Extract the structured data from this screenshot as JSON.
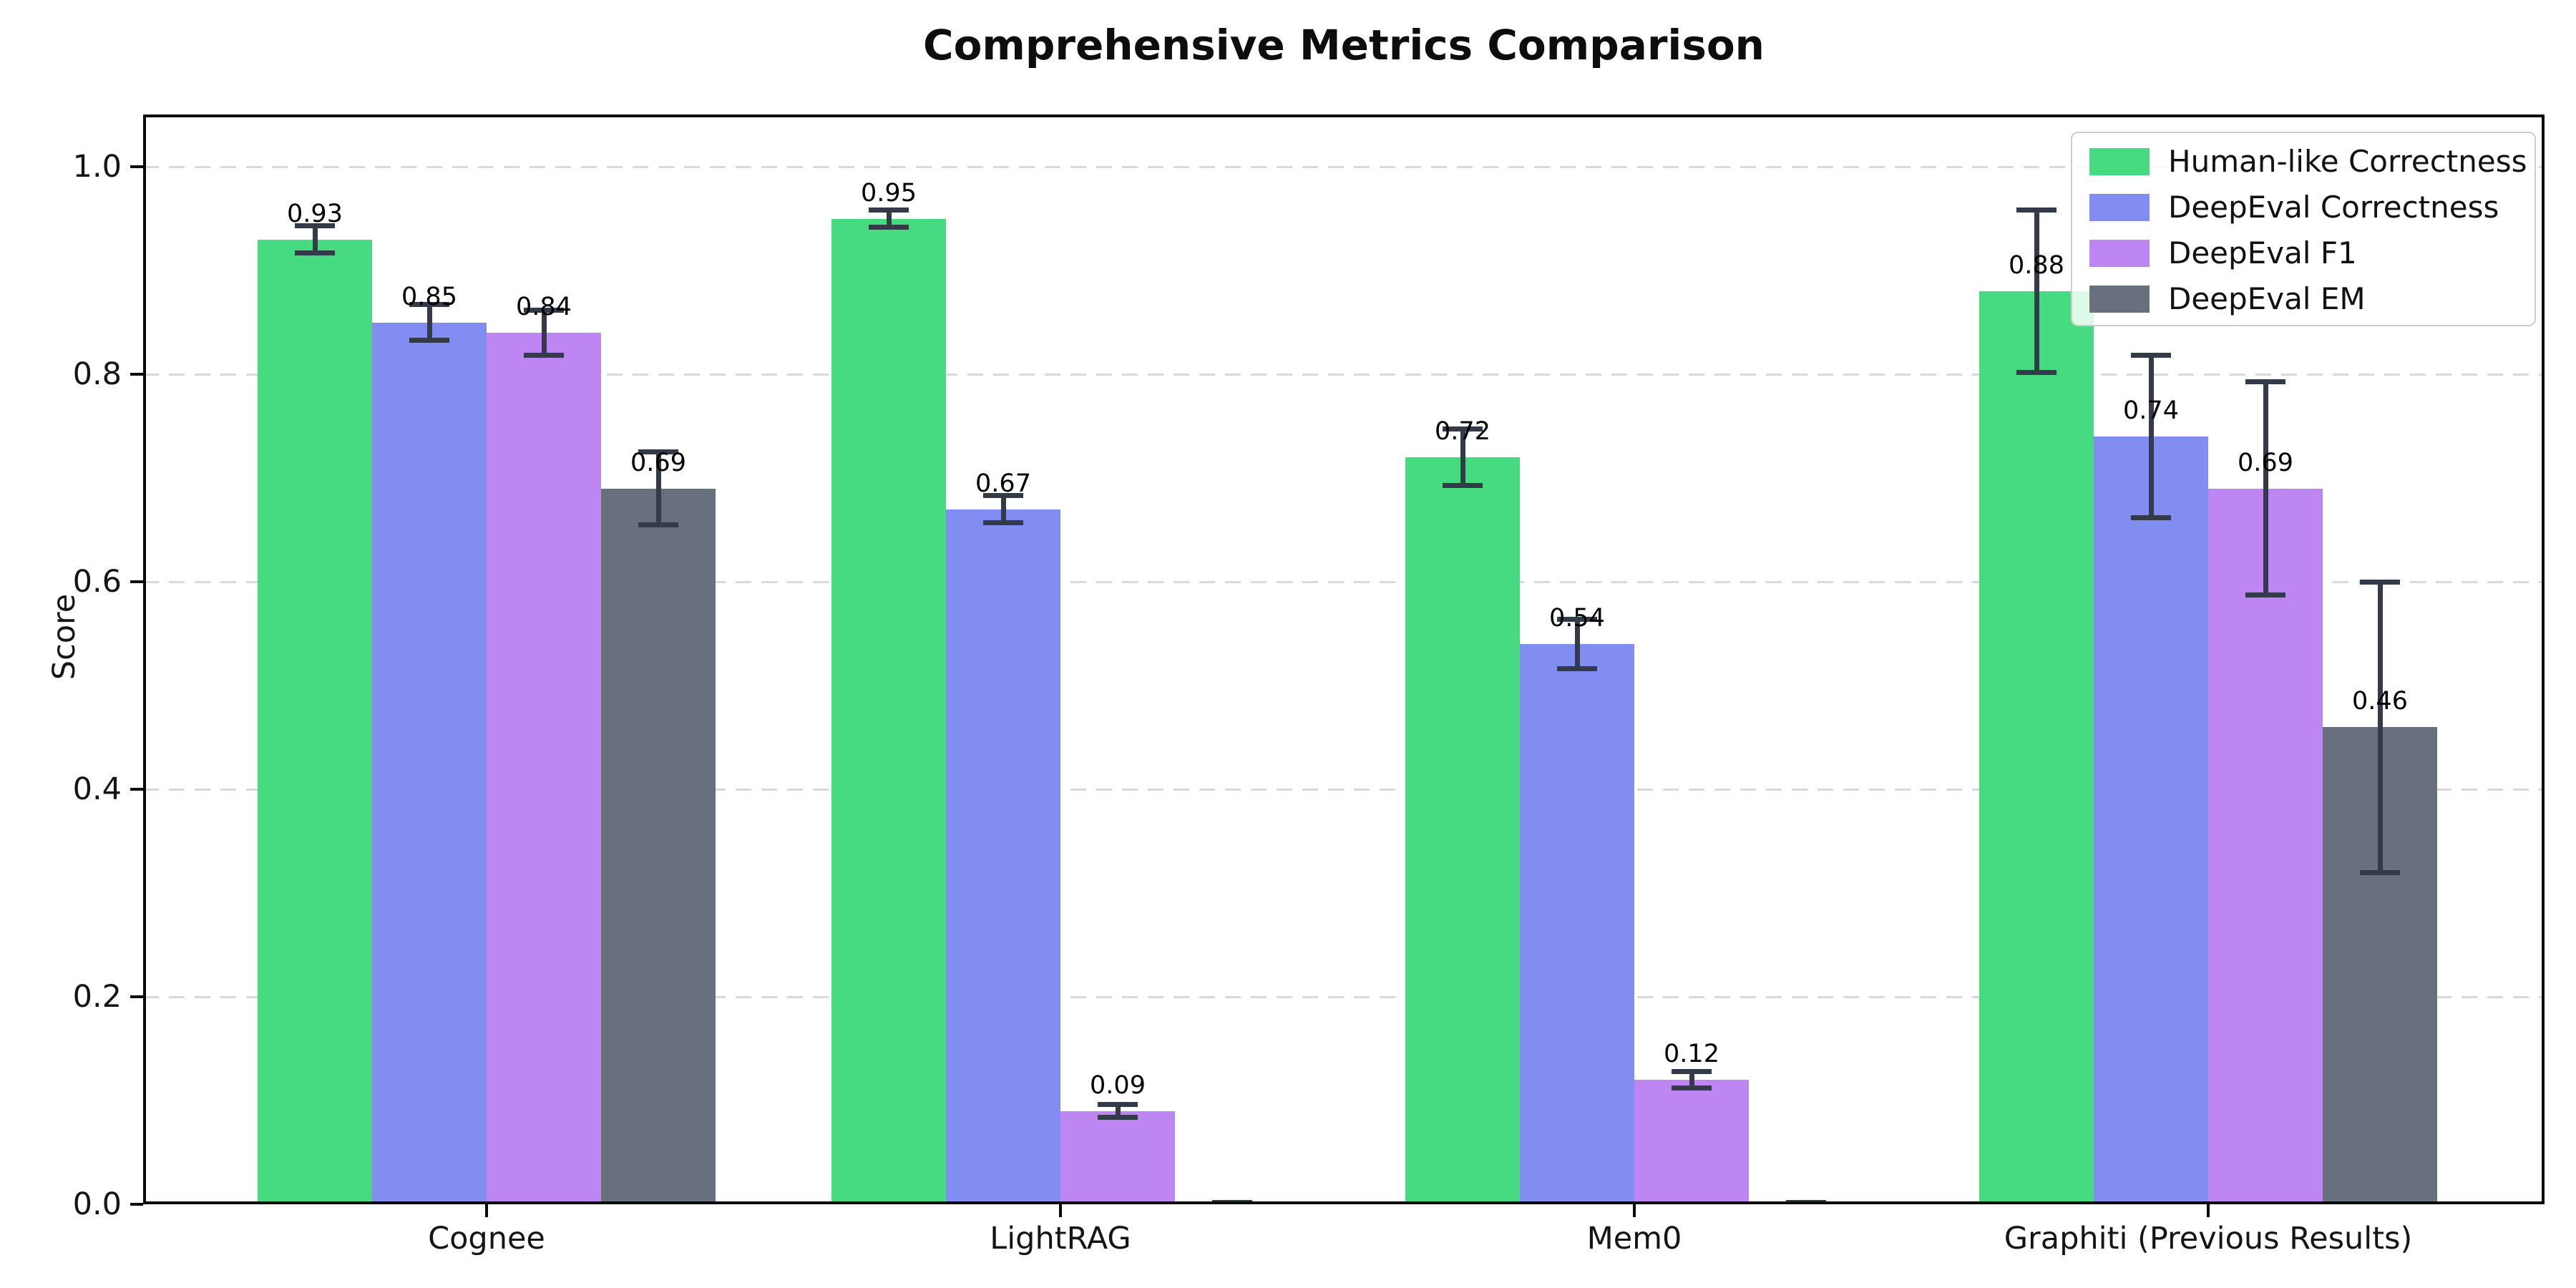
{
  "title": "Comprehensive Metrics Comparison",
  "ylabel": "Score",
  "chart_data": {
    "type": "bar",
    "title": "Comprehensive Metrics Comparison",
    "xlabel": "",
    "ylabel": "Score",
    "categories": [
      "Cognee",
      "LightRAG",
      "Mem0",
      "Graphiti (Previous Results)"
    ],
    "series": [
      {
        "name": "Human-like Correctness",
        "color": "#46da81",
        "values": [
          0.93,
          0.95,
          0.72,
          0.88
        ],
        "errors": [
          0.013,
          0.008,
          0.027,
          0.078
        ],
        "labels": [
          "0.93",
          "0.95",
          "0.72",
          "0.88"
        ]
      },
      {
        "name": "DeepEval Correctness",
        "color": "#828df2",
        "values": [
          0.85,
          0.67,
          0.54,
          0.74
        ],
        "errors": [
          0.017,
          0.013,
          0.024,
          0.078
        ],
        "labels": [
          "0.85",
          "0.67",
          "0.54",
          "0.74"
        ]
      },
      {
        "name": "DeepEval F1",
        "color": "#be86f2",
        "values": [
          0.84,
          0.09,
          0.12,
          0.69
        ],
        "errors": [
          0.022,
          0.006,
          0.008,
          0.103
        ],
        "labels": [
          "0.84",
          "0.09",
          "0.12",
          "0.69"
        ]
      },
      {
        "name": "DeepEval EM",
        "color": "#68707e",
        "values": [
          0.69,
          0.0,
          0.0,
          0.46
        ],
        "errors": [
          0.035,
          0.002,
          0.002,
          0.14
        ],
        "labels": [
          "0.69",
          null,
          null,
          "0.46"
        ]
      }
    ],
    "yticks": [
      {
        "label": "0.0",
        "value": 0.0
      },
      {
        "label": "0.2",
        "value": 0.2
      },
      {
        "label": "0.4",
        "value": 0.4
      },
      {
        "label": "0.6",
        "value": 0.6
      },
      {
        "label": "0.8",
        "value": 0.8
      },
      {
        "label": "1.0",
        "value": 1.0
      }
    ],
    "ylim": [
      0.0,
      1.05
    ],
    "grid": "horizontal-dashed",
    "legend_position": "upper-right",
    "colors": {
      "errorbar": "#333b49",
      "grid": "#d9d9d9",
      "axis": "#0a0a0a",
      "background": "#ffffff"
    }
  }
}
